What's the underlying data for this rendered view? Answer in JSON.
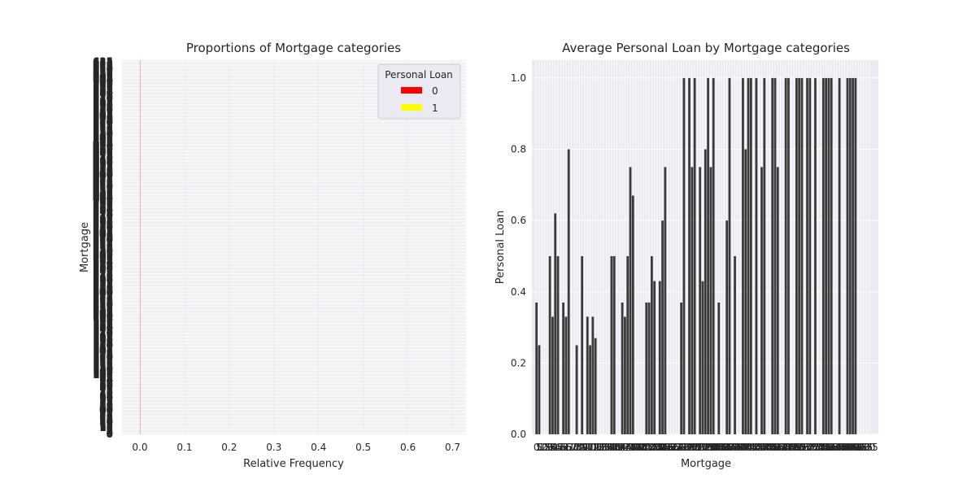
{
  "chart_data": [
    {
      "type": "bar",
      "orientation": "horizontal",
      "stacked": true,
      "title": "Proportions of Mortgage categories",
      "xlabel": "Relative Frequency",
      "ylabel": "Mortgage",
      "xlim": [
        -0.04,
        0.73
      ],
      "xticks": [
        "0.0",
        "0.1",
        "0.2",
        "0.3",
        "0.4",
        "0.5",
        "0.6",
        "0.7"
      ],
      "y_tick_label_first": "0",
      "y_tick_label_last": "635",
      "category_count": 347,
      "legend": {
        "title": "Personal Loan",
        "placement": "upper right",
        "entries": [
          {
            "label": "0",
            "color": "#ff0000"
          },
          {
            "label": "1",
            "color": "#ffff00"
          }
        ]
      },
      "note": "bars render as near-zero width; dense overlapping y tick labels"
    },
    {
      "type": "bar",
      "title": "Average Personal Loan by Mortgage categories",
      "xlabel": "Mortgage",
      "ylabel": "Personal Loan",
      "ylim": [
        0,
        1.05
      ],
      "yticks": [
        "0.0",
        "0.2",
        "0.4",
        "0.6",
        "0.8",
        "1.0"
      ],
      "x_tick_label_first": "0",
      "x_tick_label_last": "635",
      "grid": true,
      "bar_color": "#3a3a3a",
      "values": [
        0.37,
        0.25,
        0,
        0,
        0,
        0.5,
        0.33,
        0.62,
        0.5,
        0,
        0.37,
        0.33,
        0.8,
        0,
        0,
        0.25,
        0,
        0.5,
        0,
        0.33,
        0.25,
        0.33,
        0.27,
        0,
        0,
        0,
        0,
        0,
        0.5,
        0.5,
        0,
        0,
        0.37,
        0.33,
        0.5,
        0.75,
        0.67,
        0,
        0,
        0,
        0,
        0.37,
        0.37,
        0.5,
        0.43,
        0,
        0.43,
        0.6,
        0.75,
        0,
        0,
        0,
        0,
        0,
        0.37,
        1.0,
        0,
        1.0,
        0.75,
        1.0,
        0,
        0.75,
        0.43,
        0.8,
        1.0,
        0.75,
        1.0,
        0,
        0.37,
        0,
        0,
        0.6,
        1.0,
        0,
        0.5,
        0,
        0,
        1.0,
        0.8,
        1.0,
        1.0,
        0,
        1.0,
        0,
        0.75,
        1.0,
        0,
        0,
        1.0,
        1.0,
        0.75,
        0,
        0,
        1.0,
        1.0,
        0,
        0,
        1.0,
        1.0,
        1.0,
        0,
        1.0,
        1.0,
        0,
        1.0,
        0,
        0,
        1.0,
        1.0,
        1.0,
        1.0,
        0,
        0,
        1.0,
        0,
        0,
        1.0,
        1.0,
        1.0,
        1.0,
        0,
        0,
        0,
        0,
        0
      ]
    }
  ]
}
